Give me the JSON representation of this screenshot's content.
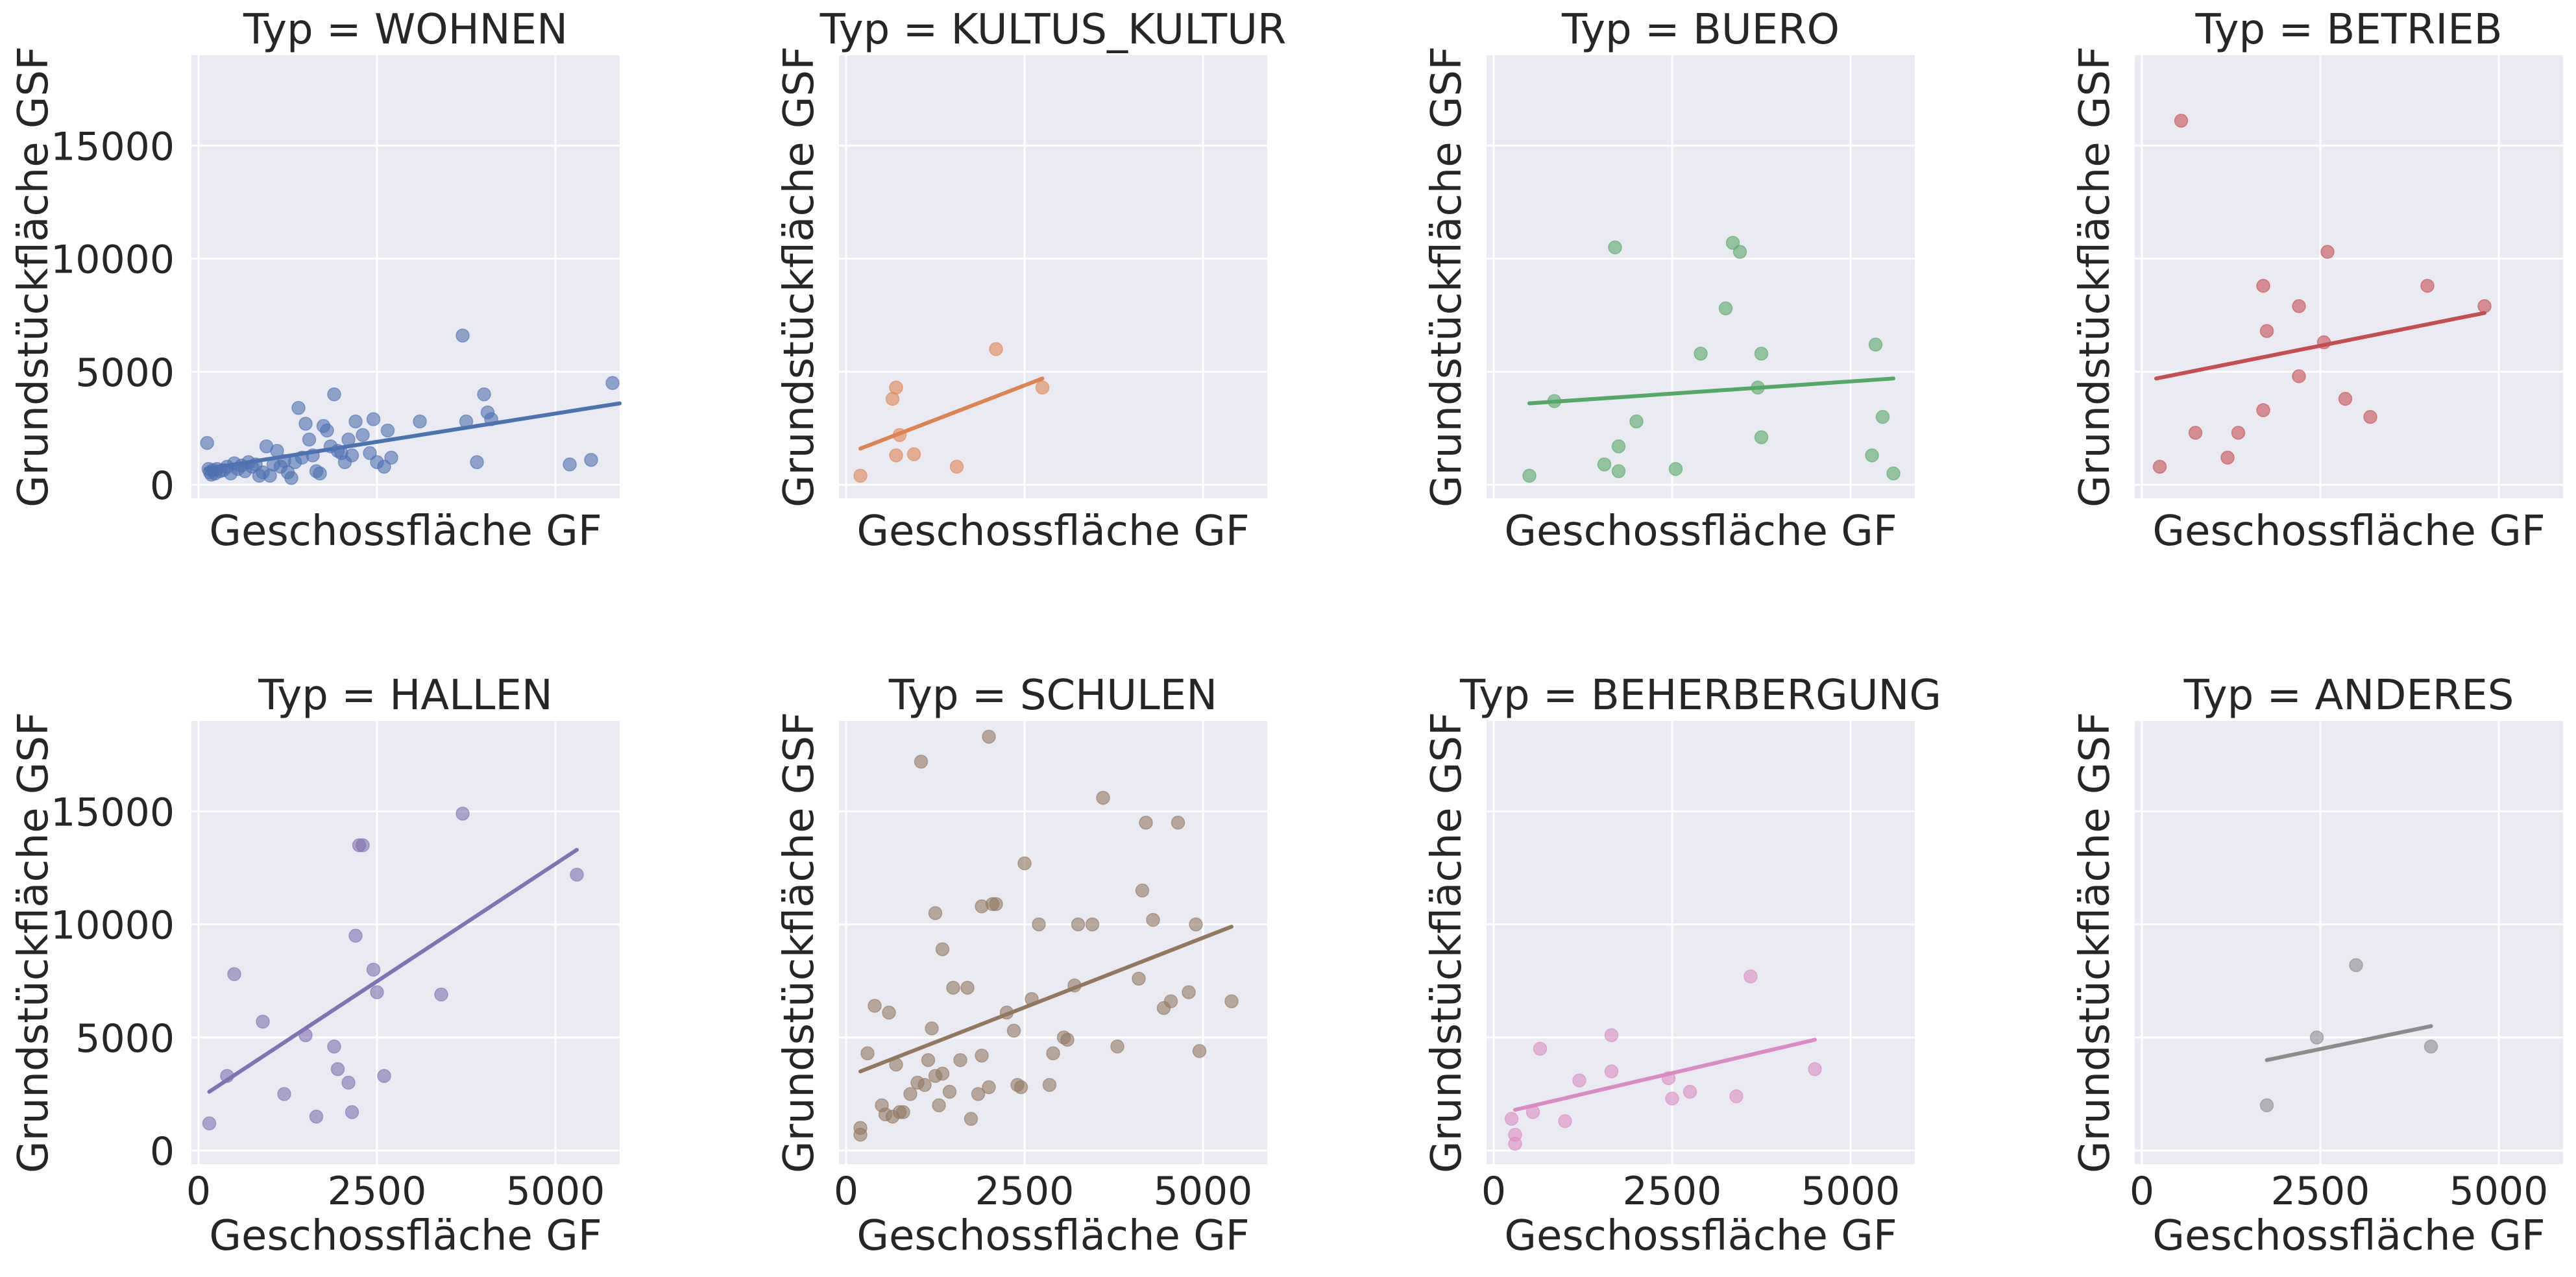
{
  "chart_data": [
    {
      "type": "scatter",
      "title": "Typ = WOHNEN",
      "color": "#4c72b0",
      "xlabel": "Geschossfläche GF",
      "ylabel": "Grundstückfläche GSF",
      "xlim": [
        -100,
        5900
      ],
      "ylim": [
        -600,
        19000
      ],
      "xticks": [
        0,
        2500,
        5000
      ],
      "yticks": [
        0,
        5000,
        10000,
        15000
      ],
      "show_xticklabels": false,
      "show_yticklabels": true,
      "points": [
        [
          120,
          1850
        ],
        [
          140,
          700
        ],
        [
          160,
          550
        ],
        [
          180,
          450
        ],
        [
          200,
          650
        ],
        [
          230,
          500
        ],
        [
          260,
          700
        ],
        [
          300,
          600
        ],
        [
          350,
          650
        ],
        [
          400,
          800
        ],
        [
          450,
          500
        ],
        [
          500,
          950
        ],
        [
          550,
          700
        ],
        [
          600,
          850
        ],
        [
          650,
          600
        ],
        [
          700,
          1000
        ],
        [
          750,
          800
        ],
        [
          800,
          900
        ],
        [
          850,
          400
        ],
        [
          900,
          550
        ],
        [
          950,
          1700
        ],
        [
          1000,
          400
        ],
        [
          1050,
          900
        ],
        [
          1100,
          1500
        ],
        [
          1150,
          800
        ],
        [
          1200,
          1050
        ],
        [
          1250,
          550
        ],
        [
          1300,
          300
        ],
        [
          1350,
          1000
        ],
        [
          1400,
          3400
        ],
        [
          1450,
          1200
        ],
        [
          1500,
          2700
        ],
        [
          1550,
          2000
        ],
        [
          1600,
          1300
        ],
        [
          1650,
          600
        ],
        [
          1700,
          500
        ],
        [
          1750,
          2600
        ],
        [
          1800,
          2400
        ],
        [
          1850,
          1700
        ],
        [
          1900,
          4000
        ],
        [
          1950,
          1500
        ],
        [
          2000,
          1400
        ],
        [
          2050,
          1000
        ],
        [
          2100,
          2000
        ],
        [
          2150,
          1300
        ],
        [
          2200,
          2800
        ],
        [
          2300,
          2200
        ],
        [
          2400,
          1400
        ],
        [
          2450,
          2900
        ],
        [
          2500,
          1000
        ],
        [
          2600,
          800
        ],
        [
          2650,
          2400
        ],
        [
          2700,
          1200
        ],
        [
          3100,
          2800
        ],
        [
          3700,
          6600
        ],
        [
          3750,
          2800
        ],
        [
          3900,
          1000
        ],
        [
          4000,
          4000
        ],
        [
          4050,
          3200
        ],
        [
          4100,
          2900
        ],
        [
          5200,
          900
        ],
        [
          5500,
          1100
        ],
        [
          5800,
          4500
        ]
      ],
      "fit": [
        [
          100,
          700
        ],
        [
          5900,
          3600
        ]
      ]
    },
    {
      "type": "scatter",
      "title": "Typ = KULTUS_KULTUR",
      "color": "#dd8452",
      "xlabel": "Geschossfläche GF",
      "ylabel": "Grundstückfläche GSF",
      "xlim": [
        -100,
        5900
      ],
      "ylim": [
        -600,
        19000
      ],
      "xticks": [
        0,
        2500,
        5000
      ],
      "yticks": [
        0,
        5000,
        10000,
        15000
      ],
      "show_xticklabels": false,
      "show_yticklabels": false,
      "points": [
        [
          200,
          400
        ],
        [
          650,
          3800
        ],
        [
          700,
          4300
        ],
        [
          700,
          1300
        ],
        [
          750,
          2200
        ],
        [
          950,
          1350
        ],
        [
          1550,
          800
        ],
        [
          2100,
          6000
        ],
        [
          2750,
          4300
        ]
      ],
      "fit": [
        [
          200,
          1600
        ],
        [
          2750,
          4700
        ]
      ]
    },
    {
      "type": "scatter",
      "title": "Typ = BUERO",
      "color": "#55a868",
      "xlabel": "Geschossfläche GF",
      "ylabel": "Grundstückfläche GSF",
      "xlim": [
        -100,
        5900
      ],
      "ylim": [
        -600,
        19000
      ],
      "xticks": [
        0,
        2500,
        5000
      ],
      "yticks": [
        0,
        5000,
        10000,
        15000
      ],
      "show_xticklabels": false,
      "show_yticklabels": false,
      "points": [
        [
          500,
          400
        ],
        [
          850,
          3700
        ],
        [
          1550,
          900
        ],
        [
          1700,
          10500
        ],
        [
          1750,
          600
        ],
        [
          1750,
          1700
        ],
        [
          2000,
          2800
        ],
        [
          2550,
          700
        ],
        [
          2900,
          5800
        ],
        [
          3250,
          7800
        ],
        [
          3350,
          10700
        ],
        [
          3450,
          10300
        ],
        [
          3700,
          4300
        ],
        [
          3750,
          5800
        ],
        [
          3750,
          2100
        ],
        [
          5300,
          1300
        ],
        [
          5350,
          6200
        ],
        [
          5450,
          3000
        ],
        [
          5600,
          500
        ]
      ],
      "fit": [
        [
          500,
          3600
        ],
        [
          5600,
          4700
        ]
      ]
    },
    {
      "type": "scatter",
      "title": "Typ = BETRIEB",
      "color": "#c44e52",
      "xlabel": "Geschossfläche GF",
      "ylabel": "Grundstückfläche GSF",
      "xlim": [
        -100,
        5900
      ],
      "ylim": [
        -600,
        19000
      ],
      "xticks": [
        0,
        2500,
        5000
      ],
      "yticks": [
        0,
        5000,
        10000,
        15000
      ],
      "show_xticklabels": false,
      "show_yticklabels": false,
      "points": [
        [
          250,
          800
        ],
        [
          550,
          16100
        ],
        [
          750,
          2300
        ],
        [
          1200,
          1200
        ],
        [
          1350,
          2300
        ],
        [
          1700,
          3300
        ],
        [
          1700,
          8800
        ],
        [
          1750,
          6800
        ],
        [
          2200,
          7900
        ],
        [
          2200,
          4800
        ],
        [
          2550,
          6300
        ],
        [
          2600,
          10300
        ],
        [
          2850,
          3800
        ],
        [
          3200,
          3000
        ],
        [
          4000,
          8800
        ],
        [
          4800,
          7900
        ]
      ],
      "fit": [
        [
          200,
          4700
        ],
        [
          4800,
          7600
        ]
      ]
    },
    {
      "type": "scatter",
      "title": "Typ = HALLEN",
      "color": "#8172b3",
      "xlabel": "Geschossfläche GF",
      "ylabel": "Grundstückfläche GSF",
      "xlim": [
        -100,
        5900
      ],
      "ylim": [
        -600,
        19000
      ],
      "xticks": [
        0,
        2500,
        5000
      ],
      "yticks": [
        0,
        5000,
        10000,
        15000
      ],
      "show_xticklabels": true,
      "show_yticklabels": true,
      "points": [
        [
          150,
          1200
        ],
        [
          400,
          3300
        ],
        [
          500,
          7800
        ],
        [
          900,
          5700
        ],
        [
          1200,
          2500
        ],
        [
          1500,
          5100
        ],
        [
          1650,
          1500
        ],
        [
          1900,
          4600
        ],
        [
          1950,
          3600
        ],
        [
          2100,
          3000
        ],
        [
          2150,
          1700
        ],
        [
          2200,
          9500
        ],
        [
          2250,
          13500
        ],
        [
          2300,
          13500
        ],
        [
          2450,
          8000
        ],
        [
          2500,
          7000
        ],
        [
          2600,
          3300
        ],
        [
          3400,
          6900
        ],
        [
          3700,
          14900
        ],
        [
          5300,
          12200
        ]
      ],
      "fit": [
        [
          150,
          2600
        ],
        [
          5300,
          13300
        ]
      ]
    },
    {
      "type": "scatter",
      "title": "Typ = SCHULEN",
      "color": "#937860",
      "xlabel": "Geschossfläche GF",
      "ylabel": "Grundstückfläche GSF",
      "xlim": [
        -100,
        5900
      ],
      "ylim": [
        -600,
        19000
      ],
      "xticks": [
        0,
        2500,
        5000
      ],
      "yticks": [
        0,
        5000,
        10000,
        15000
      ],
      "show_xticklabels": true,
      "show_yticklabels": false,
      "points": [
        [
          200,
          700
        ],
        [
          200,
          1000
        ],
        [
          300,
          4300
        ],
        [
          400,
          6400
        ],
        [
          500,
          2000
        ],
        [
          550,
          1600
        ],
        [
          600,
          6100
        ],
        [
          650,
          1500
        ],
        [
          700,
          3800
        ],
        [
          750,
          1700
        ],
        [
          800,
          1700
        ],
        [
          900,
          2500
        ],
        [
          1000,
          3000
        ],
        [
          1050,
          17200
        ],
        [
          1100,
          2900
        ],
        [
          1150,
          4000
        ],
        [
          1200,
          5400
        ],
        [
          1250,
          3300
        ],
        [
          1250,
          10500
        ],
        [
          1300,
          2000
        ],
        [
          1350,
          3400
        ],
        [
          1350,
          8900
        ],
        [
          1450,
          2600
        ],
        [
          1500,
          7200
        ],
        [
          1600,
          4000
        ],
        [
          1700,
          7200
        ],
        [
          1750,
          1400
        ],
        [
          1850,
          2500
        ],
        [
          1900,
          4200
        ],
        [
          1900,
          10800
        ],
        [
          2000,
          18300
        ],
        [
          2000,
          2800
        ],
        [
          2050,
          10900
        ],
        [
          2100,
          10900
        ],
        [
          2250,
          6100
        ],
        [
          2350,
          5300
        ],
        [
          2400,
          2900
        ],
        [
          2450,
          2800
        ],
        [
          2500,
          12700
        ],
        [
          2600,
          6700
        ],
        [
          2700,
          10000
        ],
        [
          2850,
          2900
        ],
        [
          2900,
          4300
        ],
        [
          3050,
          5000
        ],
        [
          3100,
          4900
        ],
        [
          3200,
          7300
        ],
        [
          3250,
          10000
        ],
        [
          3450,
          10000
        ],
        [
          3600,
          15600
        ],
        [
          3800,
          4600
        ],
        [
          4100,
          7600
        ],
        [
          4150,
          11500
        ],
        [
          4200,
          14500
        ],
        [
          4300,
          10200
        ],
        [
          4450,
          6300
        ],
        [
          4550,
          6600
        ],
        [
          4650,
          14500
        ],
        [
          4800,
          7000
        ],
        [
          4900,
          10000
        ],
        [
          4950,
          4400
        ],
        [
          5400,
          6600
        ]
      ],
      "fit": [
        [
          200,
          3500
        ],
        [
          5400,
          9900
        ]
      ]
    },
    {
      "type": "scatter",
      "title": "Typ = BEHERBERGUNG",
      "color": "#da8bc3",
      "xlabel": "Geschossfläche GF",
      "ylabel": "Grundstückfläche GSF",
      "xlim": [
        -100,
        5900
      ],
      "ylim": [
        -600,
        19000
      ],
      "xticks": [
        0,
        2500,
        5000
      ],
      "yticks": [
        0,
        5000,
        10000,
        15000
      ],
      "show_xticklabels": true,
      "show_yticklabels": false,
      "points": [
        [
          250,
          1400
        ],
        [
          300,
          700
        ],
        [
          300,
          300
        ],
        [
          550,
          1700
        ],
        [
          650,
          4500
        ],
        [
          1000,
          1300
        ],
        [
          1200,
          3100
        ],
        [
          1650,
          5100
        ],
        [
          1650,
          3500
        ],
        [
          2450,
          3200
        ],
        [
          2500,
          2300
        ],
        [
          2750,
          2600
        ],
        [
          3400,
          2400
        ],
        [
          3600,
          7700
        ],
        [
          4500,
          3600
        ]
      ],
      "fit": [
        [
          300,
          1800
        ],
        [
          4500,
          4900
        ]
      ]
    },
    {
      "type": "scatter",
      "title": "Typ = ANDERES",
      "color": "#8c8c8c",
      "xlabel": "Geschossfläche GF",
      "ylabel": "Grundstückfläche GSF",
      "xlim": [
        -100,
        5900
      ],
      "ylim": [
        -600,
        19000
      ],
      "xticks": [
        0,
        2500,
        5000
      ],
      "yticks": [
        0,
        5000,
        10000,
        15000
      ],
      "show_xticklabels": true,
      "show_yticklabels": false,
      "points": [
        [
          1750,
          2000
        ],
        [
          2450,
          5000
        ],
        [
          3000,
          8200
        ],
        [
          4050,
          4600
        ]
      ],
      "fit": [
        [
          1750,
          4000
        ],
        [
          4050,
          5500
        ]
      ]
    }
  ]
}
